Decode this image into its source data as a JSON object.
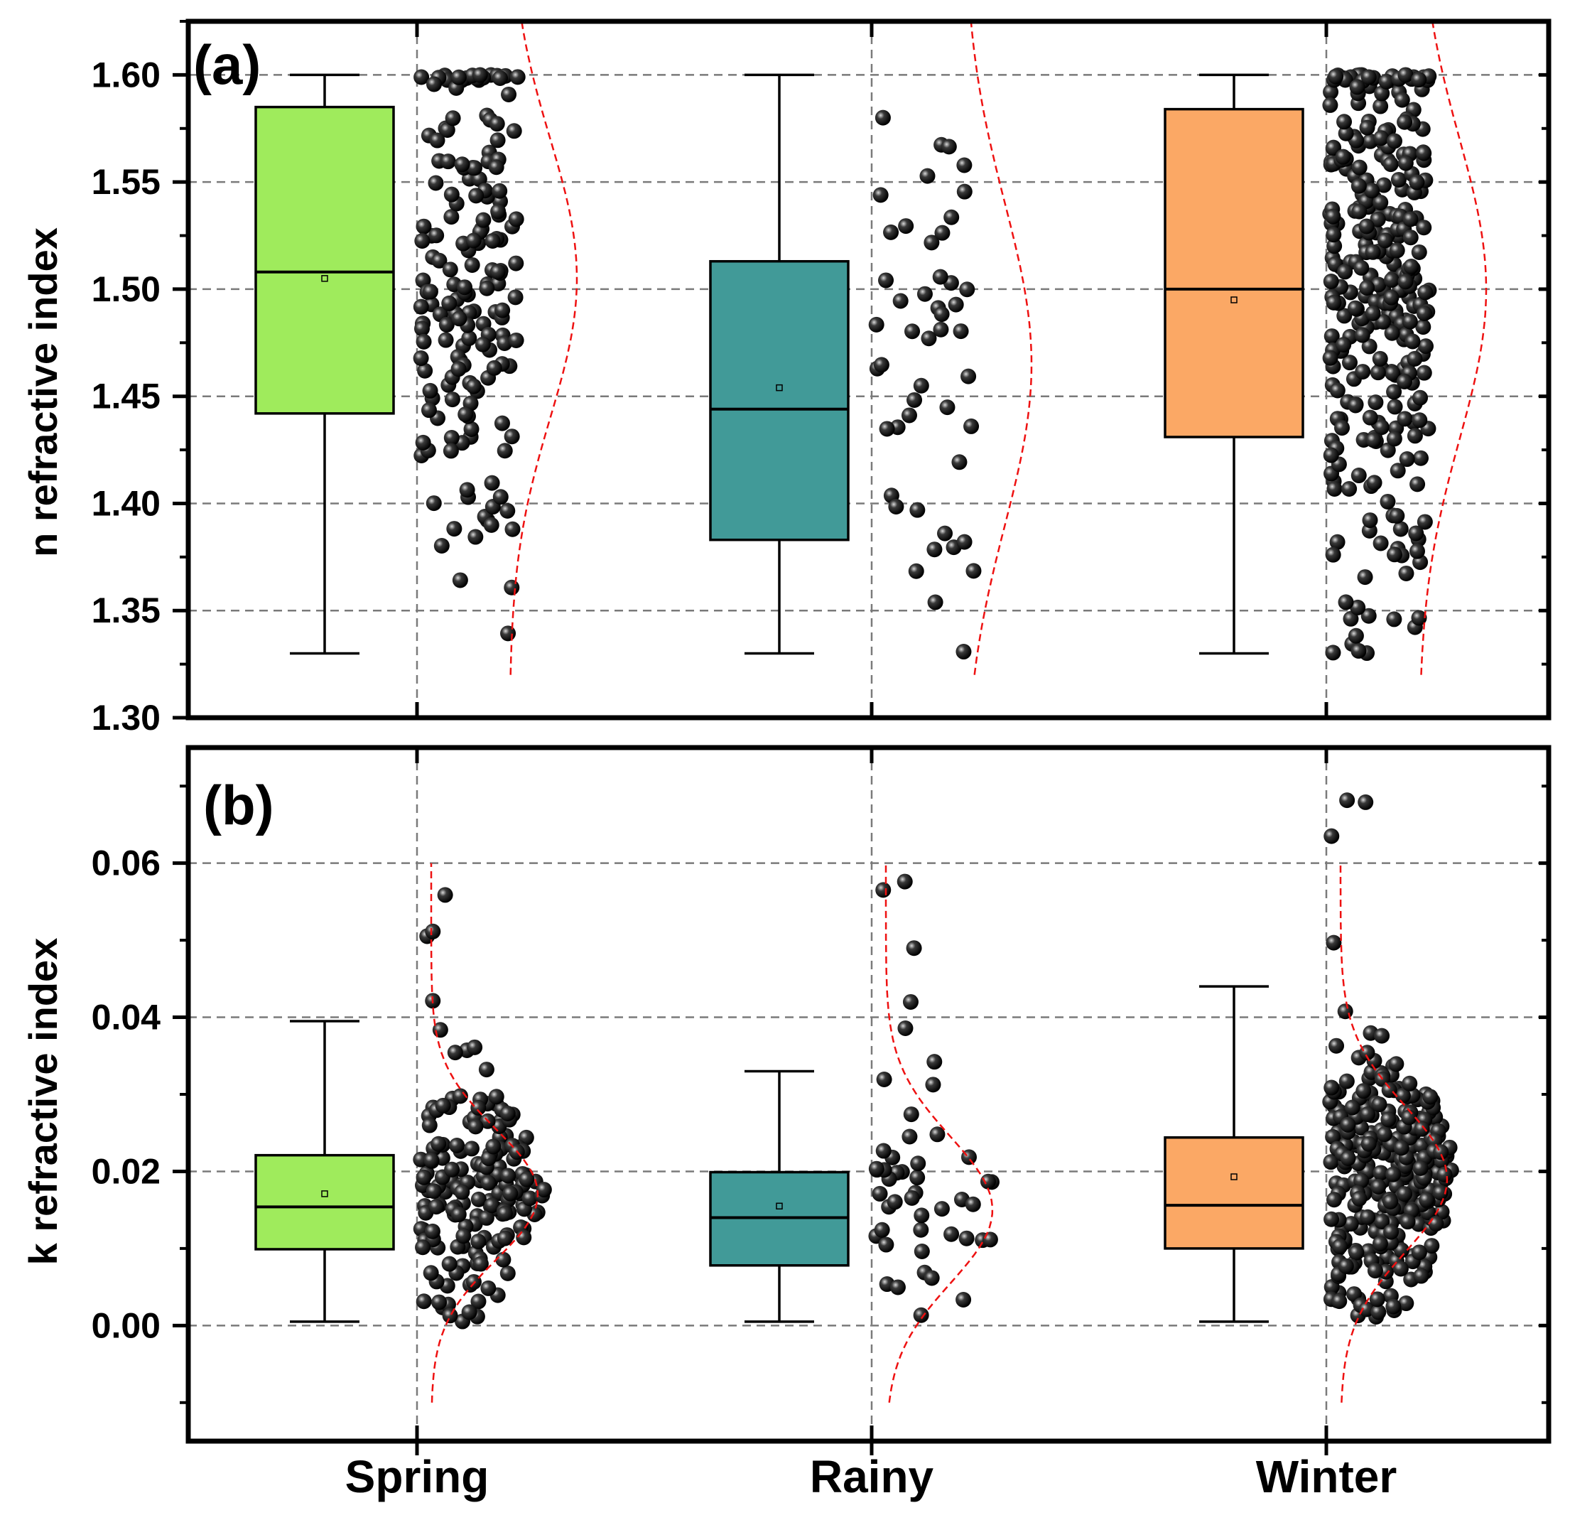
{
  "chart_data": [
    {
      "type": "box",
      "panel_label": "(a)",
      "ylabel": "n refractive index",
      "ylim": [
        1.3,
        1.625
      ],
      "yticks": [
        "1.30",
        "1.35",
        "1.40",
        "1.45",
        "1.50",
        "1.55",
        "1.60"
      ],
      "grid": true,
      "categories": [
        "Spring",
        "Rainy",
        "Winter"
      ],
      "colors": [
        "#9feb5c",
        "#419a98",
        "#fba865"
      ],
      "boxes": [
        {
          "name": "Spring",
          "min": 1.33,
          "q1": 1.442,
          "median": 1.508,
          "q3": 1.585,
          "max": 1.6,
          "mean": 1.505
        },
        {
          "name": "Rainy",
          "min": 1.33,
          "q1": 1.383,
          "median": 1.444,
          "q3": 1.513,
          "max": 1.6,
          "mean": 1.454
        },
        {
          "name": "Winter",
          "min": 1.33,
          "q1": 1.431,
          "median": 1.5,
          "q3": 1.584,
          "max": 1.6,
          "mean": 1.495
        }
      ],
      "point_counts": [
        170,
        48,
        300
      ],
      "distribution_curves": [
        {
          "name": "Spring",
          "mean": 1.505,
          "sd": 0.065
        },
        {
          "name": "Rainy",
          "mean": 1.465,
          "sd": 0.075
        },
        {
          "name": "Winter",
          "mean": 1.5,
          "sd": 0.07
        }
      ]
    },
    {
      "type": "box",
      "panel_label": "(b)",
      "ylabel": "k refractive index",
      "ylim": [
        -0.015,
        0.075
      ],
      "yticks": [
        "0.00",
        "0.02",
        "0.04",
        "0.06"
      ],
      "grid": true,
      "xlabel_ticks": [
        "Spring",
        "Rainy",
        "Winter"
      ],
      "categories": [
        "Spring",
        "Rainy",
        "Winter"
      ],
      "colors": [
        "#9feb5c",
        "#419a98",
        "#fba865"
      ],
      "boxes": [
        {
          "name": "Spring",
          "min": 0.0005,
          "q1": 0.0099,
          "median": 0.0154,
          "q3": 0.0221,
          "max": 0.0395,
          "mean": 0.0171
        },
        {
          "name": "Rainy",
          "min": 0.0005,
          "q1": 0.0078,
          "median": 0.014,
          "q3": 0.0199,
          "max": 0.033,
          "mean": 0.0155
        },
        {
          "name": "Winter",
          "min": 0.0005,
          "q1": 0.01,
          "median": 0.0156,
          "q3": 0.0244,
          "max": 0.044,
          "mean": 0.0193
        }
      ],
      "point_counts": [
        170,
        48,
        300
      ],
      "distribution_curves": [
        {
          "name": "Spring",
          "mean": 0.017,
          "sd": 0.0085
        },
        {
          "name": "Rainy",
          "mean": 0.015,
          "sd": 0.0095
        },
        {
          "name": "Winter",
          "mean": 0.019,
          "sd": 0.0095
        }
      ]
    }
  ]
}
